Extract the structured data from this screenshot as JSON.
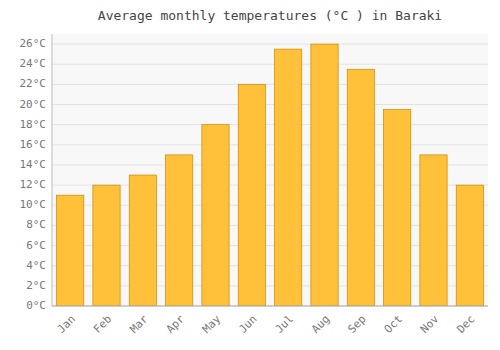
{
  "chart_data": {
    "type": "bar",
    "title": "Average monthly temperatures (°C ) in Baraki",
    "categories": [
      "Jan",
      "Feb",
      "Mar",
      "Apr",
      "May",
      "Jun",
      "Jul",
      "Aug",
      "Sep",
      "Oct",
      "Nov",
      "Dec"
    ],
    "values": [
      11.0,
      12.0,
      13.0,
      15.0,
      18.0,
      22.0,
      25.5,
      26.0,
      23.5,
      19.5,
      15.0,
      12.0
    ],
    "color": "#FFC03A",
    "ylim": [
      0,
      27
    ],
    "yticks": [
      {
        "value": 0,
        "label": "0°C"
      },
      {
        "value": 2,
        "label": "2°C"
      },
      {
        "value": 4,
        "label": "4°C"
      },
      {
        "value": 6,
        "label": "6°C"
      },
      {
        "value": 8,
        "label": "8°C"
      },
      {
        "value": 10,
        "label": "10°C"
      },
      {
        "value": 12,
        "label": "12°C"
      },
      {
        "value": 14,
        "label": "14°C"
      },
      {
        "value": 16,
        "label": "16°C"
      },
      {
        "value": 18,
        "label": "18°C"
      },
      {
        "value": 20,
        "label": "20°C"
      },
      {
        "value": 22,
        "label": "22°C"
      },
      {
        "value": 24,
        "label": "24°C"
      },
      {
        "value": 26,
        "label": "26°C"
      }
    ],
    "grid": true
  }
}
